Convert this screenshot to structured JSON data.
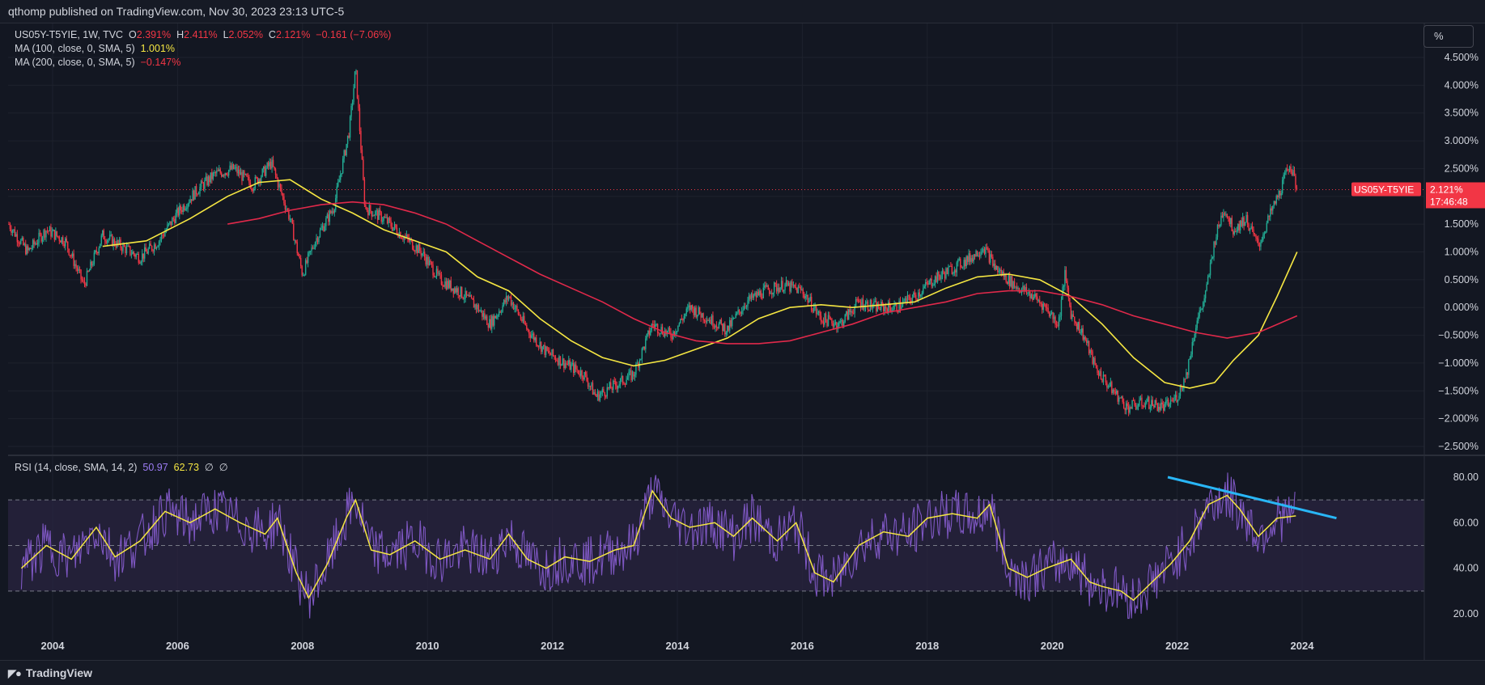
{
  "header": {
    "published": "qthomp published on TradingView.com, Nov 30, 2023 23:13 UTC-5"
  },
  "legend": {
    "symbol": "US05Y-T5YIE, 1W, TVC",
    "o_label": "O",
    "o_value": "2.391%",
    "h_label": "H",
    "h_value": "2.411%",
    "l_label": "L",
    "l_value": "2.052%",
    "c_label": "C",
    "c_value": "2.121%",
    "change": "−0.161 (−7.06%)",
    "ma100_label": "MA (100, close, 0, SMA, 5)",
    "ma100_value": "1.001%",
    "ma200_label": "MA (200, close, 0, SMA, 5)",
    "ma200_value": "−0.147%",
    "rsi_label": "RSI (14, close, SMA, 14, 2)",
    "rsi_value": "50.97",
    "rsi_ma_value": "62.73",
    "rsi_extra1": "∅",
    "rsi_extra2": "∅"
  },
  "toolbar": {
    "scale_button": "%"
  },
  "price_tag": {
    "symbol": "US05Y-T5YIE",
    "value": "2.121%",
    "countdown": "17:46:48"
  },
  "footer": {
    "brand": "TradingView",
    "brand_icon": "tradingview-logo-icon"
  },
  "colors": {
    "up": "#22ab94",
    "down": "#f23645",
    "ma100": "#f5e642",
    "ma200": "#e0294a",
    "rsi": "#7e57c2",
    "rsi_ma": "#f5e642",
    "trendline": "#29b6f6",
    "rsi_band": "#2a2440"
  },
  "chart_data": {
    "type": "candlestick",
    "timeframe": "1W",
    "x_ticks": [
      "2004",
      "2006",
      "2008",
      "2010",
      "2012",
      "2014",
      "2016",
      "2018",
      "2020",
      "2022",
      "2024"
    ],
    "y_ticks": [
      "4.500%",
      "4.000%",
      "3.500%",
      "3.000%",
      "2.500%",
      "2.000%",
      "1.500%",
      "1.000%",
      "0.500%",
      "0.000%",
      "−0.500%",
      "−1.000%",
      "−1.500%",
      "−2.000%",
      "−2.500%"
    ],
    "ylim": [
      -2.5,
      4.5
    ],
    "price_series": [
      [
        2003.3,
        1.5
      ],
      [
        2003.6,
        1.0
      ],
      [
        2003.9,
        1.4
      ],
      [
        2004.2,
        1.2
      ],
      [
        2004.5,
        0.4
      ],
      [
        2004.8,
        1.3
      ],
      [
        2005.1,
        1.1
      ],
      [
        2005.4,
        0.9
      ],
      [
        2005.7,
        1.2
      ],
      [
        2006.0,
        1.7
      ],
      [
        2006.3,
        2.1
      ],
      [
        2006.6,
        2.4
      ],
      [
        2006.9,
        2.5
      ],
      [
        2007.2,
        2.2
      ],
      [
        2007.5,
        2.6
      ],
      [
        2007.8,
        1.6
      ],
      [
        2008.0,
        0.6
      ],
      [
        2008.2,
        1.2
      ],
      [
        2008.5,
        1.8
      ],
      [
        2008.75,
        3.2
      ],
      [
        2008.85,
        4.3
      ],
      [
        2009.0,
        1.8
      ],
      [
        2009.3,
        1.6
      ],
      [
        2009.6,
        1.3
      ],
      [
        2009.9,
        1.0
      ],
      [
        2010.2,
        0.5
      ],
      [
        2010.5,
        0.3
      ],
      [
        2010.8,
        0.0
      ],
      [
        2011.0,
        -0.3
      ],
      [
        2011.3,
        0.2
      ],
      [
        2011.6,
        -0.4
      ],
      [
        2011.9,
        -0.8
      ],
      [
        2012.2,
        -1.0
      ],
      [
        2012.5,
        -1.2
      ],
      [
        2012.7,
        -1.6
      ],
      [
        2013.0,
        -1.4
      ],
      [
        2013.3,
        -1.2
      ],
      [
        2013.6,
        -0.3
      ],
      [
        2013.9,
        -0.5
      ],
      [
        2014.2,
        0.0
      ],
      [
        2014.5,
        -0.2
      ],
      [
        2014.8,
        -0.4
      ],
      [
        2015.1,
        0.1
      ],
      [
        2015.4,
        0.3
      ],
      [
        2015.7,
        0.4
      ],
      [
        2016.0,
        0.3
      ],
      [
        2016.3,
        -0.2
      ],
      [
        2016.6,
        -0.3
      ],
      [
        2016.9,
        0.1
      ],
      [
        2017.2,
        0.0
      ],
      [
        2017.5,
        0.0
      ],
      [
        2017.8,
        0.2
      ],
      [
        2018.1,
        0.5
      ],
      [
        2018.4,
        0.7
      ],
      [
        2018.7,
        0.9
      ],
      [
        2018.9,
        1.1
      ],
      [
        2019.1,
        0.7
      ],
      [
        2019.4,
        0.4
      ],
      [
        2019.7,
        0.2
      ],
      [
        2019.9,
        0.0
      ],
      [
        2020.1,
        -0.3
      ],
      [
        2020.2,
        0.6
      ],
      [
        2020.3,
        -0.1
      ],
      [
        2020.5,
        -0.5
      ],
      [
        2020.7,
        -1.1
      ],
      [
        2020.9,
        -1.4
      ],
      [
        2021.2,
        -1.8
      ],
      [
        2021.5,
        -1.7
      ],
      [
        2021.8,
        -1.8
      ],
      [
        2022.0,
        -1.6
      ],
      [
        2022.15,
        -1.2
      ],
      [
        2022.3,
        -0.3
      ],
      [
        2022.45,
        0.2
      ],
      [
        2022.6,
        1.2
      ],
      [
        2022.75,
        1.8
      ],
      [
        2022.9,
        1.4
      ],
      [
        2023.1,
        1.6
      ],
      [
        2023.3,
        1.1
      ],
      [
        2023.5,
        1.7
      ],
      [
        2023.65,
        2.1
      ],
      [
        2023.8,
        2.6
      ],
      [
        2023.92,
        2.12
      ]
    ],
    "ma100": [
      [
        2004.8,
        1.1
      ],
      [
        2005.5,
        1.2
      ],
      [
        2006.2,
        1.6
      ],
      [
        2006.8,
        2.0
      ],
      [
        2007.3,
        2.25
      ],
      [
        2007.8,
        2.3
      ],
      [
        2008.3,
        1.95
      ],
      [
        2008.8,
        1.7
      ],
      [
        2009.3,
        1.4
      ],
      [
        2009.8,
        1.2
      ],
      [
        2010.3,
        1.0
      ],
      [
        2010.8,
        0.55
      ],
      [
        2011.3,
        0.3
      ],
      [
        2011.8,
        -0.2
      ],
      [
        2012.3,
        -0.6
      ],
      [
        2012.8,
        -0.9
      ],
      [
        2013.3,
        -1.05
      ],
      [
        2013.8,
        -0.95
      ],
      [
        2014.3,
        -0.75
      ],
      [
        2014.8,
        -0.55
      ],
      [
        2015.3,
        -0.2
      ],
      [
        2015.8,
        0.0
      ],
      [
        2016.3,
        0.05
      ],
      [
        2016.8,
        0.0
      ],
      [
        2017.3,
        0.05
      ],
      [
        2017.8,
        0.1
      ],
      [
        2018.3,
        0.35
      ],
      [
        2018.8,
        0.55
      ],
      [
        2019.3,
        0.6
      ],
      [
        2019.8,
        0.5
      ],
      [
        2020.3,
        0.2
      ],
      [
        2020.8,
        -0.3
      ],
      [
        2021.3,
        -0.9
      ],
      [
        2021.8,
        -1.35
      ],
      [
        2022.2,
        -1.45
      ],
      [
        2022.6,
        -1.35
      ],
      [
        2022.9,
        -0.95
      ],
      [
        2023.3,
        -0.5
      ],
      [
        2023.6,
        0.2
      ],
      [
        2023.92,
        1.0
      ]
    ],
    "ma200": [
      [
        2006.8,
        1.5
      ],
      [
        2007.3,
        1.6
      ],
      [
        2007.8,
        1.75
      ],
      [
        2008.3,
        1.85
      ],
      [
        2008.8,
        1.9
      ],
      [
        2009.3,
        1.85
      ],
      [
        2009.8,
        1.7
      ],
      [
        2010.3,
        1.5
      ],
      [
        2010.8,
        1.2
      ],
      [
        2011.3,
        0.9
      ],
      [
        2011.8,
        0.6
      ],
      [
        2012.3,
        0.35
      ],
      [
        2012.8,
        0.1
      ],
      [
        2013.3,
        -0.2
      ],
      [
        2013.8,
        -0.45
      ],
      [
        2014.3,
        -0.6
      ],
      [
        2014.8,
        -0.65
      ],
      [
        2015.3,
        -0.65
      ],
      [
        2015.8,
        -0.6
      ],
      [
        2016.3,
        -0.45
      ],
      [
        2016.8,
        -0.3
      ],
      [
        2017.3,
        -0.1
      ],
      [
        2017.8,
        0.0
      ],
      [
        2018.3,
        0.1
      ],
      [
        2018.8,
        0.25
      ],
      [
        2019.3,
        0.3
      ],
      [
        2019.8,
        0.3
      ],
      [
        2020.3,
        0.2
      ],
      [
        2020.8,
        0.05
      ],
      [
        2021.3,
        -0.15
      ],
      [
        2021.8,
        -0.3
      ],
      [
        2022.3,
        -0.45
      ],
      [
        2022.8,
        -0.55
      ],
      [
        2023.3,
        -0.45
      ],
      [
        2023.92,
        -0.15
      ]
    ],
    "last_price": 2.121,
    "rsi_ticks": [
      "80.00",
      "60.00",
      "40.00",
      "20.00"
    ],
    "rsi_ylim": [
      15,
      85
    ],
    "rsi_levels": [
      70,
      50,
      30
    ],
    "rsi_ma_series": [
      [
        2003.5,
        40
      ],
      [
        2003.9,
        50
      ],
      [
        2004.3,
        44
      ],
      [
        2004.7,
        58
      ],
      [
        2005.0,
        45
      ],
      [
        2005.4,
        52
      ],
      [
        2005.8,
        65
      ],
      [
        2006.2,
        60
      ],
      [
        2006.6,
        66
      ],
      [
        2007.0,
        60
      ],
      [
        2007.4,
        55
      ],
      [
        2007.6,
        62
      ],
      [
        2007.9,
        38
      ],
      [
        2008.1,
        27
      ],
      [
        2008.4,
        42
      ],
      [
        2008.7,
        62
      ],
      [
        2008.85,
        70
      ],
      [
        2009.1,
        48
      ],
      [
        2009.4,
        46
      ],
      [
        2009.8,
        52
      ],
      [
        2010.2,
        44
      ],
      [
        2010.6,
        48
      ],
      [
        2011.0,
        44
      ],
      [
        2011.3,
        55
      ],
      [
        2011.6,
        44
      ],
      [
        2011.9,
        40
      ],
      [
        2012.2,
        45
      ],
      [
        2012.6,
        43
      ],
      [
        2013.0,
        48
      ],
      [
        2013.3,
        50
      ],
      [
        2013.6,
        74
      ],
      [
        2013.9,
        62
      ],
      [
        2014.2,
        58
      ],
      [
        2014.6,
        60
      ],
      [
        2014.9,
        54
      ],
      [
        2015.2,
        62
      ],
      [
        2015.6,
        52
      ],
      [
        2015.9,
        60
      ],
      [
        2016.2,
        38
      ],
      [
        2016.5,
        34
      ],
      [
        2016.9,
        50
      ],
      [
        2017.3,
        56
      ],
      [
        2017.7,
        54
      ],
      [
        2018.0,
        62
      ],
      [
        2018.4,
        64
      ],
      [
        2018.8,
        62
      ],
      [
        2019.0,
        68
      ],
      [
        2019.3,
        40
      ],
      [
        2019.6,
        36
      ],
      [
        2019.9,
        40
      ],
      [
        2020.1,
        42
      ],
      [
        2020.3,
        44
      ],
      [
        2020.6,
        34
      ],
      [
        2020.8,
        32
      ],
      [
        2021.1,
        30
      ],
      [
        2021.3,
        26
      ],
      [
        2021.6,
        34
      ],
      [
        2021.9,
        42
      ],
      [
        2022.2,
        52
      ],
      [
        2022.5,
        68
      ],
      [
        2022.8,
        72
      ],
      [
        2023.0,
        66
      ],
      [
        2023.3,
        54
      ],
      [
        2023.6,
        62
      ],
      [
        2023.9,
        63
      ]
    ],
    "rsi_trendline": [
      [
        2021.85,
        80
      ],
      [
        2024.55,
        62
      ]
    ]
  }
}
